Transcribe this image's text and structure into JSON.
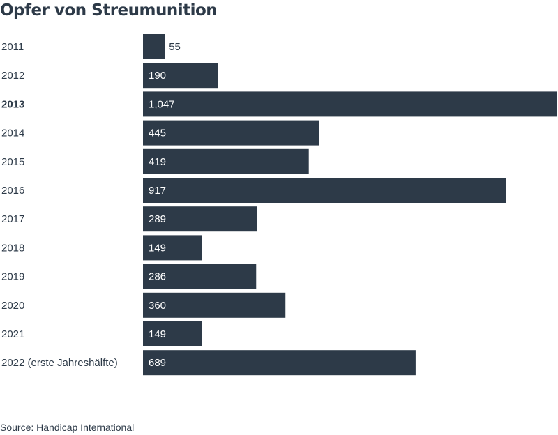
{
  "chart_data": {
    "type": "bar",
    "orientation": "horizontal",
    "title": "Opfer von Streumunition",
    "categories": [
      "2011",
      "2012",
      "2013",
      "2014",
      "2015",
      "2016",
      "2017",
      "2018",
      "2019",
      "2020",
      "2021",
      "2022 (erste Jahreshälfte)"
    ],
    "values": [
      55,
      190,
      1047,
      445,
      419,
      917,
      289,
      149,
      286,
      360,
      149,
      689
    ],
    "value_labels": [
      "55",
      "190",
      "1,047",
      "445",
      "419",
      "917",
      "289",
      "149",
      "286",
      "360",
      "149",
      "689"
    ],
    "highlighted_category": "2013",
    "bar_color": "#2d3a48",
    "label_color_inside": "#ffffff",
    "label_color_outside": "#2d3a48",
    "xlim": [
      0,
      1047
    ],
    "grid": false,
    "legend": "none"
  },
  "source": "Source: Handicap International"
}
